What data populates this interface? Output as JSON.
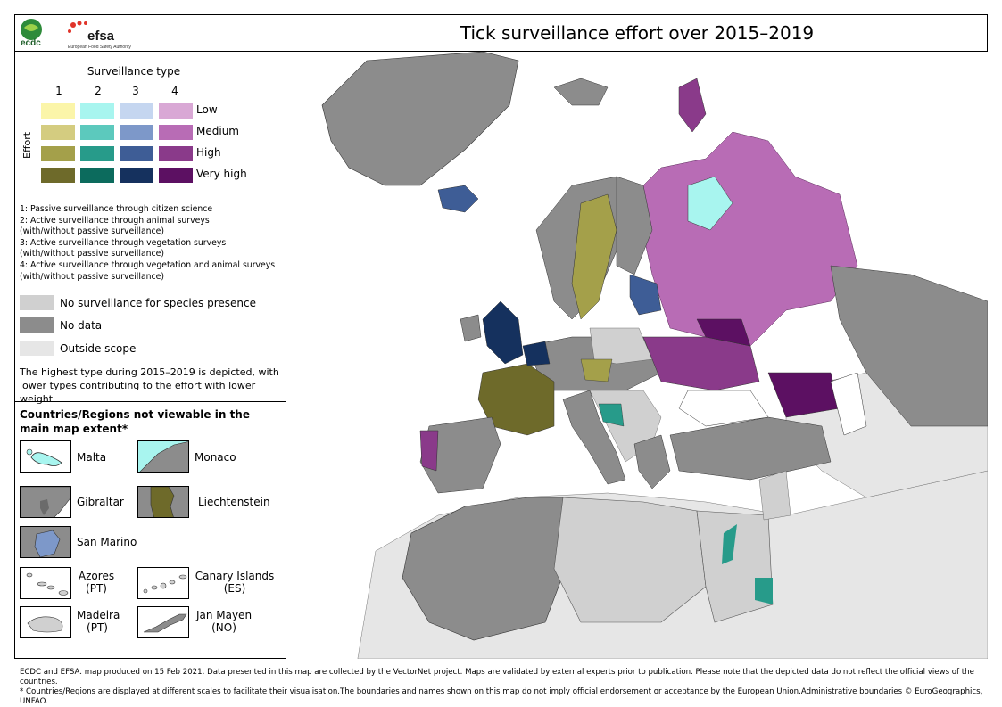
{
  "title": "Tick surveillance effort over 2015–2019",
  "logos": {
    "ecdc": "ecdc",
    "efsa": "efsa",
    "efsa_subtitle": "European Food Safety Authority",
    "ecdc_subtitle": "ECDC"
  },
  "legend": {
    "type_heading": "Surveillance type",
    "effort_axis": "Effort",
    "type_numbers": [
      "1",
      "2",
      "3",
      "4"
    ],
    "levels": [
      "Low",
      "Medium",
      "High",
      "Very high"
    ],
    "colors": {
      "type1": [
        "#fbf5a9",
        "#d4cc80",
        "#a4a04a",
        "#6e6a2a"
      ],
      "type2": [
        "#a8f5ef",
        "#5cc9bd",
        "#279b8a",
        "#0c6b5d"
      ],
      "type3": [
        "#c5d6f0",
        "#7d98c9",
        "#3e5d96",
        "#15315e"
      ],
      "type4": [
        "#d9a8d5",
        "#b86cb5",
        "#8a3a8a",
        "#5c1062"
      ]
    },
    "definitions": [
      "1: Passive surveillance through citizen science",
      "2: Active surveillance through animal surveys",
      "(with/without passive surveillance)",
      "3: Active surveillance through vegetation surveys",
      "(with/without passive surveillance)",
      "4: Active surveillance through vegetation and animal surveys",
      "(with/without passive surveillance)"
    ],
    "grey_items": [
      {
        "label": "No surveillance for species presence",
        "color": "#d0d0d0"
      },
      {
        "label": "No data",
        "color": "#8c8c8c"
      },
      {
        "label": "Outside scope",
        "color": "#e6e6e6"
      }
    ],
    "note": "The highest type during 2015–2019 is depicted, with lower types contributing to the effort with lower weight"
  },
  "regions": {
    "heading": "Countries/Regions not viewable in the main map extent*",
    "items": [
      {
        "name": "Malta",
        "fill": "#a8f5ef"
      },
      {
        "name": "Monaco",
        "fill": "#a8f5ef"
      },
      {
        "name": "Gibraltar",
        "fill": "#8c8c8c"
      },
      {
        "name": "Liechtenstein",
        "fill": "#6e6a2a"
      },
      {
        "name": "San Marino",
        "fill": "#7d98c9"
      },
      {
        "name": "Azores",
        "sub": "(PT)",
        "fill": "#d0d0d0"
      },
      {
        "name": "Canary Islands",
        "sub": "(ES)",
        "fill": "#d0d0d0"
      },
      {
        "name": "Madeira",
        "sub": "(PT)",
        "fill": "#d0d0d0"
      },
      {
        "name": "Jan Mayen",
        "sub": "(NO)",
        "fill": "#8c8c8c"
      }
    ]
  },
  "footer": [
    "ECDC and EFSA. map produced on 15 Feb 2021. Data presented in this map are collected by the VectorNet project. Maps are validated by external experts prior to publication. Please note that the depicted data do not reflect the official views of the countries.",
    "* Countries/Regions are displayed at different scales to facilitate their visualisation.The boundaries and names shown on this map do not imply official endorsement or acceptance by the European Union.Administrative boundaries © EuroGeographics, UNFAO."
  ],
  "map_colors": {
    "outside": "#e6e6e6",
    "nodata": "#8c8c8c",
    "nosurv": "#d0d0d0",
    "sea": "#ffffff",
    "border": "#5a5a5a"
  }
}
